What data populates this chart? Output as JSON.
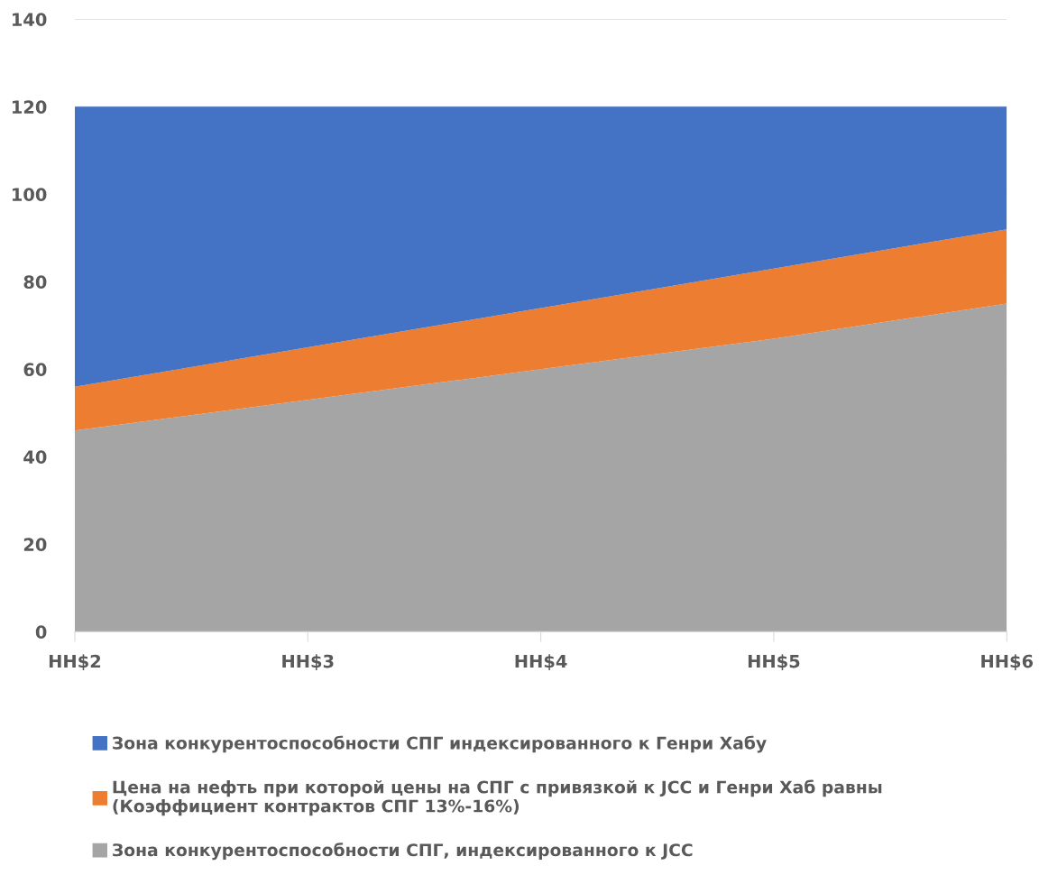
{
  "chart_data": {
    "type": "area",
    "stacked": true,
    "categories": [
      "HH$2",
      "HH$3",
      "HH$4",
      "HH$5",
      "HH$6"
    ],
    "series": [
      {
        "name": "Зона конкурентоспособности СПГ, индексированного к JCC",
        "color": "#a5a5a5",
        "values": [
          46,
          53,
          60,
          67,
          75
        ]
      },
      {
        "name": "Цена на нефть при которой цены на СПГ с привязкой к JCC и Генри Хаб равны\n(Коэффициент контрактов СПГ 13%-16%)",
        "color": "#ed7d31",
        "values": [
          10,
          12,
          14,
          16,
          17
        ]
      },
      {
        "name": "Зона конкурентоспособности СПГ индексированного к Генри Хабу",
        "color": "#4472c4",
        "values": [
          64,
          55,
          46,
          37,
          28
        ]
      }
    ],
    "ylim": [
      0,
      140
    ],
    "yticks": [
      0,
      20,
      40,
      60,
      80,
      100,
      120,
      140
    ],
    "grid": "y",
    "legend": "bottom"
  }
}
